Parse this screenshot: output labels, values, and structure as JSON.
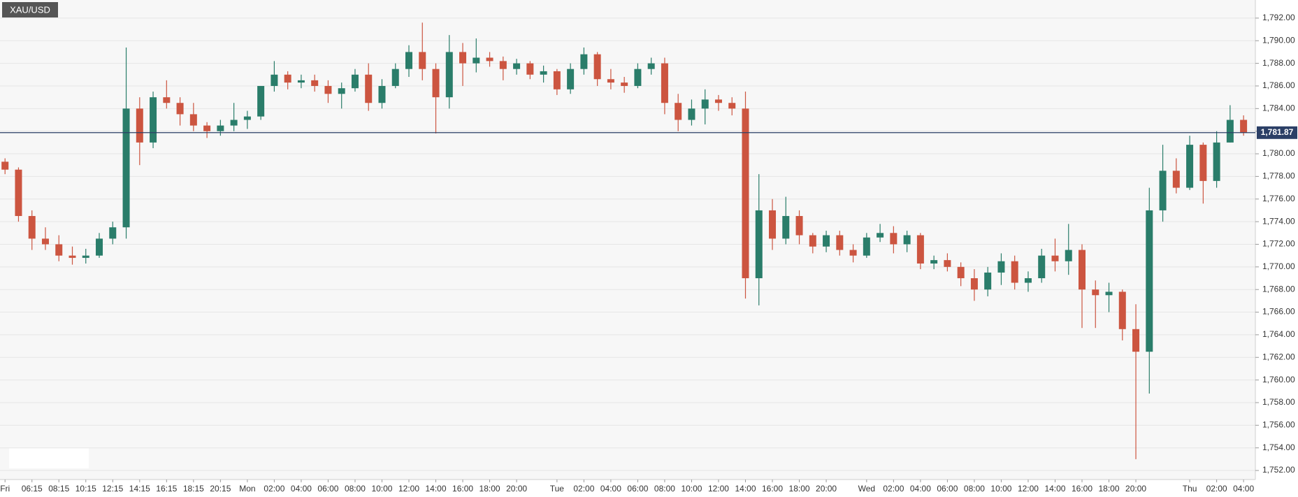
{
  "chart_data": {
    "type": "candlestick",
    "title": "XAU/USD",
    "categories": [
      "Fri",
      null,
      "06:15",
      null,
      "08:15",
      null,
      "10:15",
      null,
      "12:15",
      null,
      "14:15",
      null,
      "16:15",
      null,
      "18:15",
      null,
      "20:15",
      null,
      "Mon",
      null,
      "02:00",
      null,
      "04:00",
      null,
      "06:00",
      null,
      "08:00",
      null,
      "10:00",
      null,
      "12:00",
      null,
      "14:00",
      null,
      "16:00",
      null,
      "18:00",
      null,
      "20:00",
      null,
      null,
      "Tue",
      null,
      "02:00",
      null,
      "04:00",
      null,
      "06:00",
      null,
      "08:00",
      null,
      "10:00",
      null,
      "12:00",
      null,
      "14:00",
      null,
      "16:00",
      null,
      "18:00",
      null,
      "20:00",
      null,
      null,
      "Wed",
      null,
      "02:00",
      null,
      "04:00",
      null,
      "06:00",
      null,
      "08:00",
      null,
      "10:00",
      null,
      "12:00",
      null,
      "14:00",
      null,
      "16:00",
      null,
      "18:00",
      null,
      "20:00",
      null,
      null,
      null,
      "Thu",
      null,
      "02:00",
      null,
      "04:00"
    ],
    "open": [
      1779.3,
      1778.6,
      1774.5,
      1772.5,
      1772,
      1771,
      1770.8,
      1771,
      1772.5,
      1773.5,
      1784,
      1781,
      1785,
      1784.5,
      1783.5,
      1782.5,
      1782,
      1782.5,
      1783,
      1783.3,
      1786,
      1787,
      1786.3,
      1786.5,
      1786,
      1785.3,
      1785.8,
      1787,
      1784.5,
      1786,
      1787.5,
      1789,
      1787.5,
      1785,
      1789,
      1788,
      1788.5,
      1788.2,
      1787.5,
      1788,
      1787,
      1787.3,
      1785.7,
      1787.5,
      1788.8,
      1786.6,
      1786.3,
      1786,
      1787.5,
      1788,
      1784.5,
      1783,
      1784,
      1784.8,
      1784.5,
      1784,
      1769,
      1775,
      1772.5,
      1774.5,
      1772.8,
      1771.8,
      1772.8,
      1771.5,
      1771,
      1772.6,
      1773,
      1772,
      1772.8,
      1770.3,
      1770.6,
      1770,
      1769,
      1768,
      1769.5,
      1770.5,
      1768.6,
      1769,
      1771,
      1770.5,
      1771.5,
      1768,
      1767.5,
      1767.8,
      1764.5,
      1762.5,
      1775,
      1778.5,
      1777,
      1780.8,
      1777.6,
      1781,
      1783
    ],
    "high": [
      1779.6,
      1778.8,
      1775,
      1773.5,
      1772.8,
      1771.8,
      1771.6,
      1773,
      1774,
      1789.4,
      1785,
      1785.5,
      1786.5,
      1785,
      1784.5,
      1782.8,
      1783,
      1784.5,
      1783.8,
      1786,
      1788.2,
      1787.3,
      1787,
      1787,
      1786.5,
      1786.3,
      1787.5,
      1788,
      1786.6,
      1788,
      1789.6,
      1791.6,
      1788,
      1790.5,
      1789.8,
      1790.2,
      1789,
      1788.6,
      1788.4,
      1788.2,
      1787.8,
      1787.5,
      1788,
      1789.4,
      1789,
      1787.5,
      1786.8,
      1788,
      1788.5,
      1788.5,
      1785.3,
      1784.8,
      1785.7,
      1785.2,
      1785,
      1785.5,
      1778.2,
      1776,
      1776.2,
      1775,
      1773,
      1773.2,
      1773.2,
      1772,
      1773,
      1773.8,
      1773.6,
      1773.2,
      1773,
      1771,
      1771.2,
      1770.4,
      1769.8,
      1770,
      1771.2,
      1771,
      1769.6,
      1771.6,
      1772.5,
      1773.8,
      1772,
      1768.8,
      1768.6,
      1768,
      1766.7,
      1777,
      1780.8,
      1779.6,
      1781.6,
      1781,
      1782,
      1784.3,
      1783.4
    ],
    "low": [
      1778.2,
      1774,
      1771.5,
      1771.5,
      1770.5,
      1770.2,
      1770.3,
      1770.8,
      1772,
      1772.5,
      1779,
      1780.5,
      1784,
      1782.5,
      1782,
      1781.4,
      1781.6,
      1782,
      1782.2,
      1783,
      1785.5,
      1785.7,
      1785.8,
      1785.5,
      1784.5,
      1784,
      1785.5,
      1783.8,
      1784,
      1785.8,
      1786.8,
      1786.5,
      1781.8,
      1784,
      1786,
      1787.2,
      1787.7,
      1786.5,
      1787,
      1786.6,
      1786.3,
      1785.2,
      1785.3,
      1787,
      1786,
      1785.7,
      1785.4,
      1785.8,
      1787,
      1783.5,
      1782,
      1782.5,
      1782.6,
      1783.8,
      1783.4,
      1767.2,
      1766.6,
      1771.5,
      1772,
      1772,
      1771.2,
      1771.3,
      1771,
      1770.4,
      1770.8,
      1772.2,
      1771.2,
      1771.3,
      1769.8,
      1769.8,
      1769.6,
      1768.3,
      1767,
      1767.4,
      1768.4,
      1768,
      1767.8,
      1768.6,
      1769.6,
      1769.3,
      1764.6,
      1764.6,
      1766,
      1763.5,
      1753,
      1758.8,
      1774,
      1776.5,
      1776.8,
      1775.6,
      1777,
      1781,
      1781.6
    ],
    "close": [
      1778.6,
      1774.5,
      1772.5,
      1772,
      1771,
      1770.8,
      1771,
      1772.5,
      1773.5,
      1784,
      1781,
      1785,
      1784.5,
      1783.5,
      1782.5,
      1782,
      1782.5,
      1783,
      1783.3,
      1786,
      1787,
      1786.3,
      1786.5,
      1786,
      1785.3,
      1785.8,
      1787,
      1784.5,
      1786,
      1787.5,
      1789,
      1787.5,
      1785,
      1789,
      1788,
      1788.5,
      1788.2,
      1787.5,
      1788,
      1787,
      1787.3,
      1785.7,
      1787.5,
      1788.8,
      1786.6,
      1786.3,
      1786,
      1787.5,
      1788,
      1784.5,
      1783,
      1784,
      1784.8,
      1784.5,
      1784,
      1769,
      1775,
      1772.5,
      1774.5,
      1772.8,
      1771.8,
      1772.8,
      1771.5,
      1771,
      1772.6,
      1773,
      1772,
      1772.8,
      1770.3,
      1770.6,
      1770,
      1769,
      1768,
      1769.5,
      1770.5,
      1768.6,
      1769,
      1771,
      1770.5,
      1771.5,
      1768,
      1767.5,
      1767.8,
      1764.5,
      1762.5,
      1775,
      1778.5,
      1777,
      1780.8,
      1777.6,
      1781,
      1783,
      1781.87
    ],
    "ylim": [
      1751.2,
      1793.6
    ],
    "yticks": [
      {
        "value": 1752,
        "label": "1,752.00"
      },
      {
        "value": 1754,
        "label": "1,754.00"
      },
      {
        "value": 1756,
        "label": "1,756.00"
      },
      {
        "value": 1758,
        "label": "1,758.00"
      },
      {
        "value": 1760,
        "label": "1,760.00"
      },
      {
        "value": 1762,
        "label": "1,762.00"
      },
      {
        "value": 1764,
        "label": "1,764.00"
      },
      {
        "value": 1766,
        "label": "1,766.00"
      },
      {
        "value": 1768,
        "label": "1,768.00"
      },
      {
        "value": 1770,
        "label": "1,770.00"
      },
      {
        "value": 1772,
        "label": "1,772.00"
      },
      {
        "value": 1774,
        "label": "1,774.00"
      },
      {
        "value": 1776,
        "label": "1,776.00"
      },
      {
        "value": 1778,
        "label": "1,778.00"
      },
      {
        "value": 1780,
        "label": "1,780.00"
      },
      {
        "value": 1782,
        "label": "1,782.00"
      },
      {
        "value": 1784,
        "label": "1,784.00"
      },
      {
        "value": 1786,
        "label": "1,786.00"
      },
      {
        "value": 1788,
        "label": "1,788.00"
      },
      {
        "value": 1790,
        "label": "1,790.00"
      },
      {
        "value": 1792,
        "label": "1,792.00"
      }
    ],
    "grid": true,
    "current_price": 1781.87,
    "current_price_label": "1,781.87",
    "up_color": "#2a7d6a",
    "down_color": "#cc5540",
    "price_line_color": "#2b3f66"
  }
}
